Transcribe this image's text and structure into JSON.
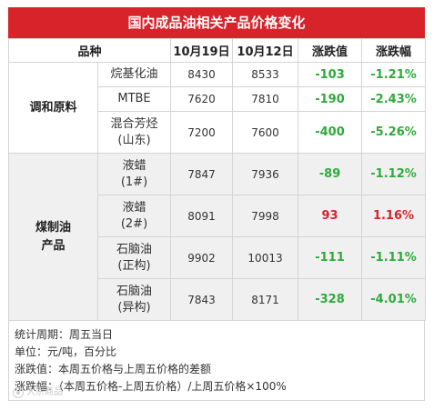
{
  "title": "国内成品油相关产品价格变化",
  "headers": [
    "品种",
    "10月19日",
    "10月12日",
    "涨跌值",
    "涨跌幅"
  ],
  "groups": [
    {
      "name_lines": [
        "调和原料"
      ],
      "rows": [
        {
          "name_lines": [
            "烷基化油"
          ],
          "cur": "8430",
          "prev": "8533",
          "chg": "-103",
          "pct": "-1.21%",
          "dir": "down"
        },
        {
          "name_lines": [
            "MTBE"
          ],
          "cur": "7620",
          "prev": "7810",
          "chg": "-190",
          "pct": "-2.43%",
          "dir": "down"
        },
        {
          "name_lines": [
            "混合芳烃",
            "(山东)"
          ],
          "cur": "7200",
          "prev": "7600",
          "chg": "-400",
          "pct": "-5.26%",
          "dir": "down"
        }
      ]
    },
    {
      "name_lines": [
        "煤制油",
        "产品"
      ],
      "rows": [
        {
          "name_lines": [
            "液蜡",
            "(1#)"
          ],
          "cur": "7847",
          "prev": "7936",
          "chg": "-89",
          "pct": "-1.12%",
          "dir": "down"
        },
        {
          "name_lines": [
            "液蜡",
            "(2#)"
          ],
          "cur": "8091",
          "prev": "7998",
          "chg": "93",
          "pct": "1.16%",
          "dir": "up"
        },
        {
          "name_lines": [
            "石脑油",
            "(正构)"
          ],
          "cur": "9902",
          "prev": "10013",
          "chg": "-111",
          "pct": "-1.11%",
          "dir": "down"
        },
        {
          "name_lines": [
            "石脑油",
            "(异构)"
          ],
          "cur": "7843",
          "prev": "8171",
          "chg": "-328",
          "pct": "-4.01%",
          "dir": "down"
        }
      ]
    }
  ],
  "notes": [
    "统计周期：周五当日",
    "单位：元/吨，百分比",
    "涨跌值：本周五价格与上周五价格的差额",
    "涨跌幅：（本周五价格-上周五价格）/上周五价格×100%"
  ],
  "watermark": "大宗商品",
  "colors": {
    "title_bg": "#d8232a",
    "down": "#2eaa3a",
    "up": "#d8232a",
    "alt_bg": "#f0f0f0"
  }
}
